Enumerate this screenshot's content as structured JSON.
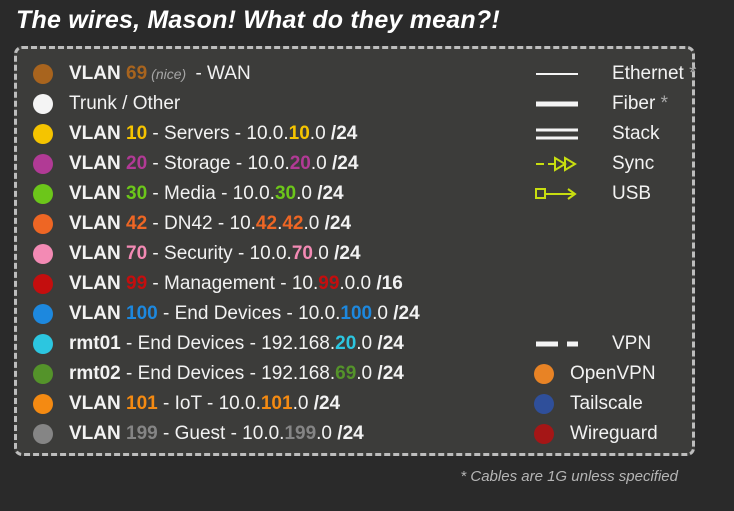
{
  "title": "The wires, Mason! What do they mean?!",
  "footnote": "* Cables are 1G unless specified",
  "colors": {
    "wan": "#a8641e",
    "trunk": "#f4f4f4",
    "servers": "#f5c400",
    "storage": "#b13a95",
    "media": "#6cc61a",
    "dn42": "#ee6624",
    "security": "#f38ab4",
    "management": "#c40e0e",
    "end_devices": "#1d88de",
    "rmt01": "#2cc6e0",
    "rmt02": "#54932a",
    "iot": "#f48a12",
    "guest": "#858585",
    "sync": "#c8de10",
    "usb": "#c8de10",
    "openvpn": "#e88325",
    "tailscale": "#2f4f9a",
    "wireguard": "#a51616"
  },
  "vlans": {
    "wan": {
      "prefix": "VLAN",
      "num": "69",
      "nice": "(nice)",
      "label": " - WAN"
    },
    "trunk": {
      "label": "Trunk / Other"
    },
    "servers": {
      "prefix": "VLAN",
      "num": "10",
      "label": " - Servers - 10.0.",
      "oct": "10",
      "tail": ".0",
      "mask": " /24"
    },
    "storage": {
      "prefix": "VLAN",
      "num": "20",
      "label": " - Storage - 10.0.",
      "oct": "20",
      "tail": ".0",
      "mask": " /24"
    },
    "media": {
      "prefix": "VLAN",
      "num": "30",
      "label": " - Media - 10.0.",
      "oct": "30",
      "tail": ".0",
      "mask": " /24"
    },
    "dn42": {
      "prefix": "VLAN",
      "num": "42",
      "label": " - DN42 - 10.",
      "oct": "42",
      "oct2": "42",
      "tail": ".0",
      "mask": " /24"
    },
    "security": {
      "prefix": "VLAN",
      "num": "70",
      "label": " - Security - 10.0.",
      "oct": "70",
      "tail": ".0",
      "mask": " /24"
    },
    "management": {
      "prefix": "VLAN",
      "num": "99",
      "label": " - Management - 10.",
      "oct": "99",
      "tail": ".0.0",
      "mask": " /16"
    },
    "end_devices": {
      "prefix": "VLAN",
      "num": "100",
      "label": " - End Devices - 10.0.",
      "oct": "100",
      "tail": ".0",
      "mask": " /24"
    },
    "rmt01": {
      "prefix": "rmt01",
      "label": " - End Devices - 192.168.",
      "oct": "20",
      "tail": ".0",
      "mask": " /24"
    },
    "rmt02": {
      "prefix": "rmt02",
      "label": " - End Devices - 192.168.",
      "oct": "69",
      "tail": ".0",
      "mask": " /24"
    },
    "iot": {
      "prefix": "VLAN",
      "num": "101",
      "label": " - IoT - 10.0.",
      "oct": "101",
      "tail": ".0",
      "mask": " /24"
    },
    "guest": {
      "prefix": "VLAN",
      "num": "199",
      "label": " - Guest - 10.0.",
      "oct": "199",
      "tail": ".0",
      "mask": " /24"
    }
  },
  "lines": {
    "ethernet": {
      "label": "Ethernet",
      "star": "*"
    },
    "fiber": {
      "label": "Fiber",
      "star": "*"
    },
    "stack": {
      "label": "Stack"
    },
    "sync": {
      "label": "Sync"
    },
    "usb": {
      "label": "USB"
    },
    "vpn": {
      "label": "VPN"
    }
  },
  "providers": {
    "openvpn": "OpenVPN",
    "tailscale": "Tailscale",
    "wireguard": "Wireguard"
  }
}
